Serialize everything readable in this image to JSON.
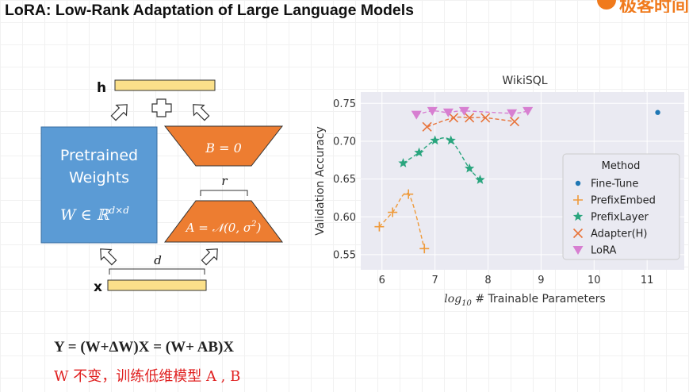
{
  "page_title": "LoRA: Low-Rank Adaptation of Large Language Models",
  "logo_text": "极客时间",
  "diagram": {
    "h_label": "h",
    "x_label": "x",
    "plus_sign": "+",
    "pretrained_line1": "Pretrained",
    "pretrained_line2": "Weights",
    "w_formula": "W ∈ ℝ",
    "w_formula_sup": "d×d",
    "b_formula": "B = 0",
    "a_formula": "A = 𝒩(0, σ",
    "a_formula_sup": "2",
    "a_formula_end": ")",
    "r_label": "r",
    "d_label": "d",
    "colors": {
      "blue": "#5b9bd5",
      "orange": "#ed7d31",
      "yellow": "#fbe08a"
    }
  },
  "chart_data": {
    "type": "scatter",
    "title": "WikiSQL",
    "xlabel_prefix": "log",
    "xlabel_sub": "10",
    "xlabel_rest": " # Trainable Parameters",
    "ylabel": "Validation Accuracy",
    "xlim": [
      5.6,
      11.7
    ],
    "ylim": [
      0.53,
      0.765
    ],
    "xticks": [
      6,
      7,
      8,
      9,
      10,
      11
    ],
    "yticks": [
      0.55,
      0.6,
      0.65,
      0.7,
      0.75
    ],
    "ytick_labels": [
      "0.55",
      "0.60",
      "0.65",
      "0.70",
      "0.75"
    ],
    "grid": true,
    "legend_title": "Method",
    "legend_position": "right",
    "series": [
      {
        "name": "Fine-Tune",
        "marker": "dot",
        "color": "#1f77b4",
        "dashed": false,
        "points": [
          [
            11.2,
            0.738
          ]
        ]
      },
      {
        "name": "PrefixEmbed",
        "marker": "plus",
        "color": "#ef9a3a",
        "dashed": true,
        "points": [
          [
            5.95,
            0.587
          ],
          [
            6.2,
            0.606
          ],
          [
            6.5,
            0.63
          ],
          [
            6.8,
            0.558
          ]
        ]
      },
      {
        "name": "PrefixLayer",
        "marker": "star",
        "color": "#2aa57e",
        "dashed": true,
        "points": [
          [
            6.4,
            0.671
          ],
          [
            6.7,
            0.685
          ],
          [
            7.0,
            0.701
          ],
          [
            7.3,
            0.701
          ],
          [
            7.65,
            0.664
          ],
          [
            7.85,
            0.649
          ]
        ]
      },
      {
        "name": "Adapter(H)",
        "marker": "x",
        "color": "#e8743b",
        "dashed": true,
        "points": [
          [
            6.85,
            0.719
          ],
          [
            7.35,
            0.731
          ],
          [
            7.65,
            0.731
          ],
          [
            7.95,
            0.731
          ],
          [
            8.5,
            0.726
          ]
        ]
      },
      {
        "name": "LoRA",
        "marker": "triangle",
        "color": "#d77fd1",
        "dashed": true,
        "points": [
          [
            6.65,
            0.735
          ],
          [
            6.95,
            0.74
          ],
          [
            7.25,
            0.738
          ],
          [
            7.55,
            0.74
          ],
          [
            8.45,
            0.737
          ],
          [
            8.75,
            0.74
          ]
        ]
      }
    ]
  },
  "formula_line1": "Y = (W+ΔW)X = (W+ AB)X",
  "formula_line2": "W 不变，训练低维模型 A , B"
}
